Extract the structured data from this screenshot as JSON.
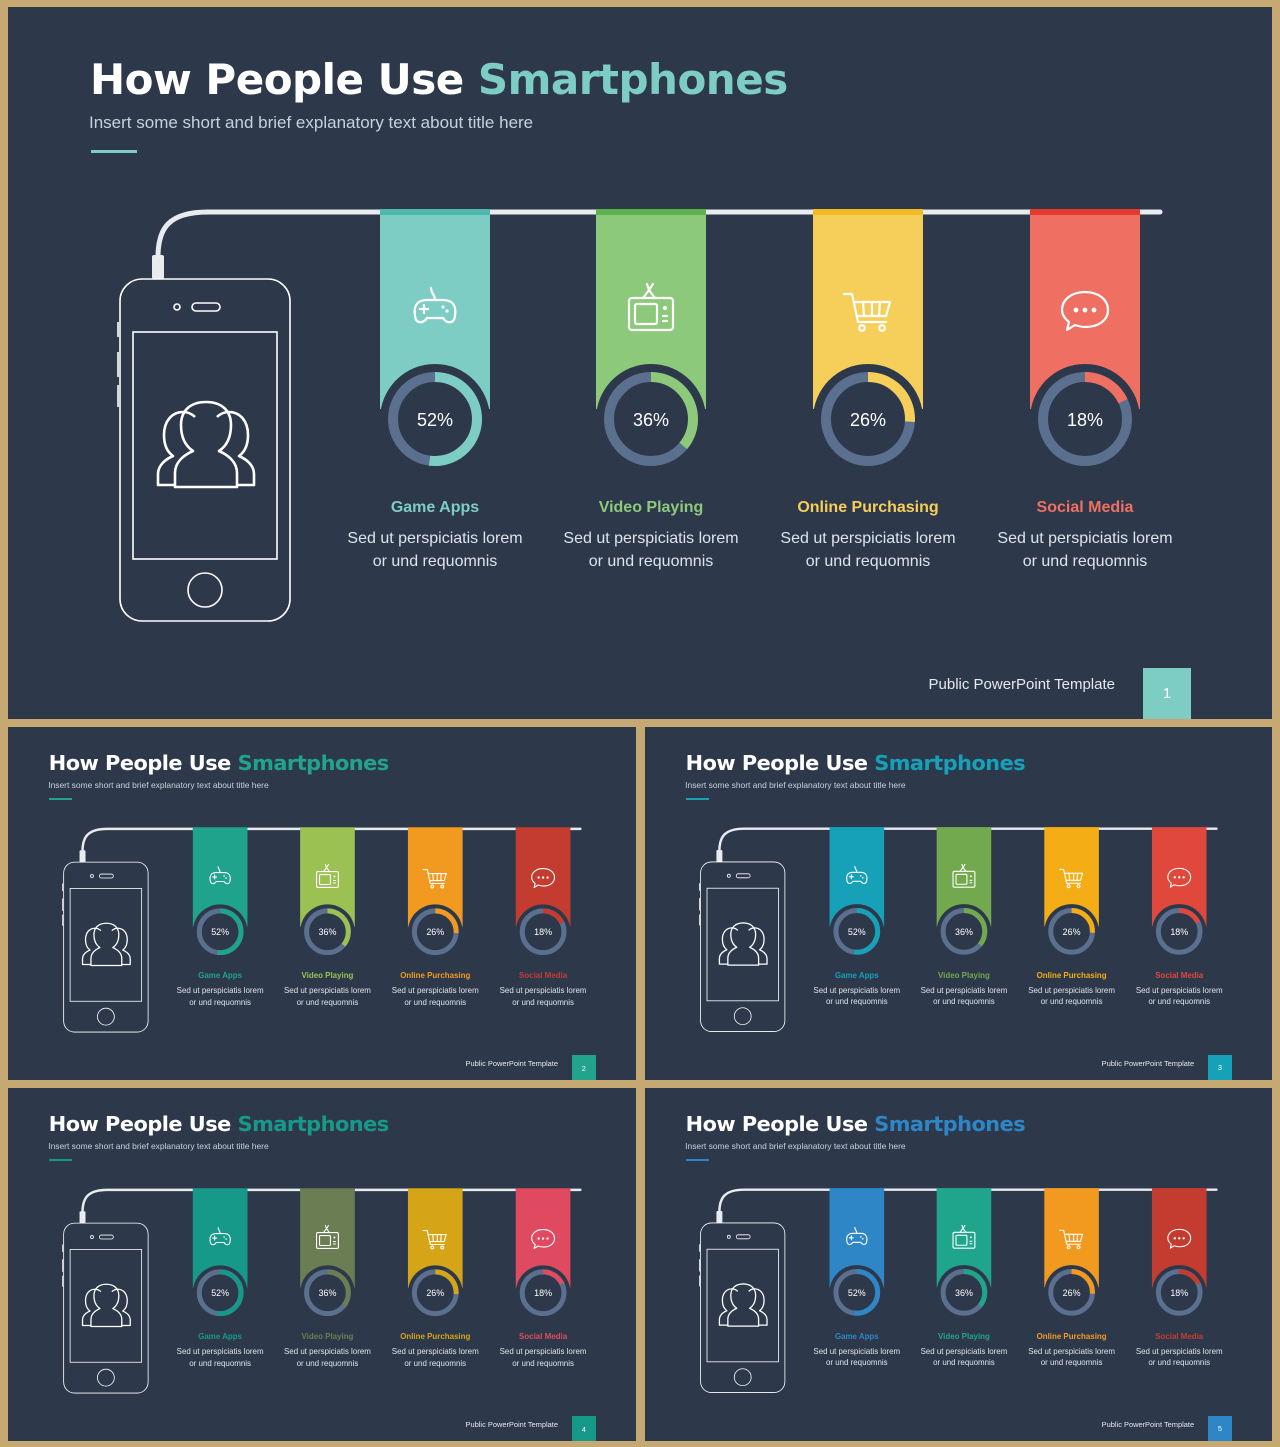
{
  "title": {
    "main": "How People Use ",
    "accent": "Smartphones"
  },
  "subtitle": "Insert some short and brief explanatory text about title here",
  "footer": "Public PowerPoint Template",
  "categories": [
    {
      "name": "Game Apps",
      "percent": 52,
      "percent_label": "52%",
      "icon": "gamepad-icon",
      "desc": "Sed ut perspiciatis lorem or und requomnis"
    },
    {
      "name": "Video Playing",
      "percent": 36,
      "percent_label": "36%",
      "icon": "tv-icon",
      "desc": "Sed ut perspiciatis lorem or und requomnis"
    },
    {
      "name": "Online Purchasing",
      "percent": 26,
      "percent_label": "26%",
      "icon": "shopping-cart-icon",
      "desc": "Sed ut perspiciatis lorem or und requomnis"
    },
    {
      "name": "Social Media",
      "percent": 18,
      "percent_label": "18%",
      "icon": "chat-bubble-icon",
      "desc": "Sed ut perspiciatis lorem or und requomnis"
    }
  ],
  "slides": [
    {
      "page": "1",
      "accent": "#7ecdc4",
      "underline": "#7ecdc4",
      "page_box": "#7ecdc4",
      "colors": [
        "#7ecdc4",
        "#8dc97b",
        "#f6cf5a",
        "#ef6f62"
      ],
      "name_colors": [
        "#7ecdc4",
        "#8dc97b",
        "#f6cf5a",
        "#ef6f62"
      ],
      "top_colors": [
        "#4fb7ac",
        "#5fb04f",
        "#f2bb26",
        "#e53a2c"
      ]
    },
    {
      "page": "2",
      "accent": "#21a38c",
      "underline": "#21a38c",
      "page_box": "#21a38c",
      "colors": [
        "#20a38c",
        "#9bc152",
        "#f29a1f",
        "#c43c30"
      ],
      "name_colors": [
        "#20a38c",
        "#9bc152",
        "#f29a1f",
        "#c43c30"
      ],
      "top_colors": [
        "#20a38c",
        "#9bc152",
        "#f29a1f",
        "#c43c30"
      ]
    },
    {
      "page": "3",
      "accent": "#16a1b8",
      "underline": "#16a1b8",
      "page_box": "#16a1b8",
      "colors": [
        "#16a1b8",
        "#72a84e",
        "#f4ad14",
        "#e0483c"
      ],
      "name_colors": [
        "#16a1b8",
        "#72a84e",
        "#f4ad14",
        "#e0483c"
      ],
      "top_colors": [
        "#16a1b8",
        "#72a84e",
        "#f4ad14",
        "#e0483c"
      ]
    },
    {
      "page": "4",
      "accent": "#17998a",
      "underline": "#17998a",
      "page_box": "#17998a",
      "colors": [
        "#17998a",
        "#6b7d52",
        "#d6a417",
        "#e04a60"
      ],
      "name_colors": [
        "#17998a",
        "#6b7d52",
        "#d6a417",
        "#e04a60"
      ],
      "top_colors": [
        "#17998a",
        "#6b7d52",
        "#d6a417",
        "#e04a60"
      ]
    },
    {
      "page": "5",
      "accent": "#2e86c7",
      "underline": "#2e86c7",
      "page_box": "#2e86c7",
      "colors": [
        "#2e86c7",
        "#1fa58c",
        "#f29a1f",
        "#c43c30"
      ],
      "name_colors": [
        "#2e86c7",
        "#1fa58c",
        "#f29a1f",
        "#c43c30"
      ],
      "top_colors": [
        "#2e86c7",
        "#1fa58c",
        "#f29a1f",
        "#c43c30"
      ]
    }
  ]
}
